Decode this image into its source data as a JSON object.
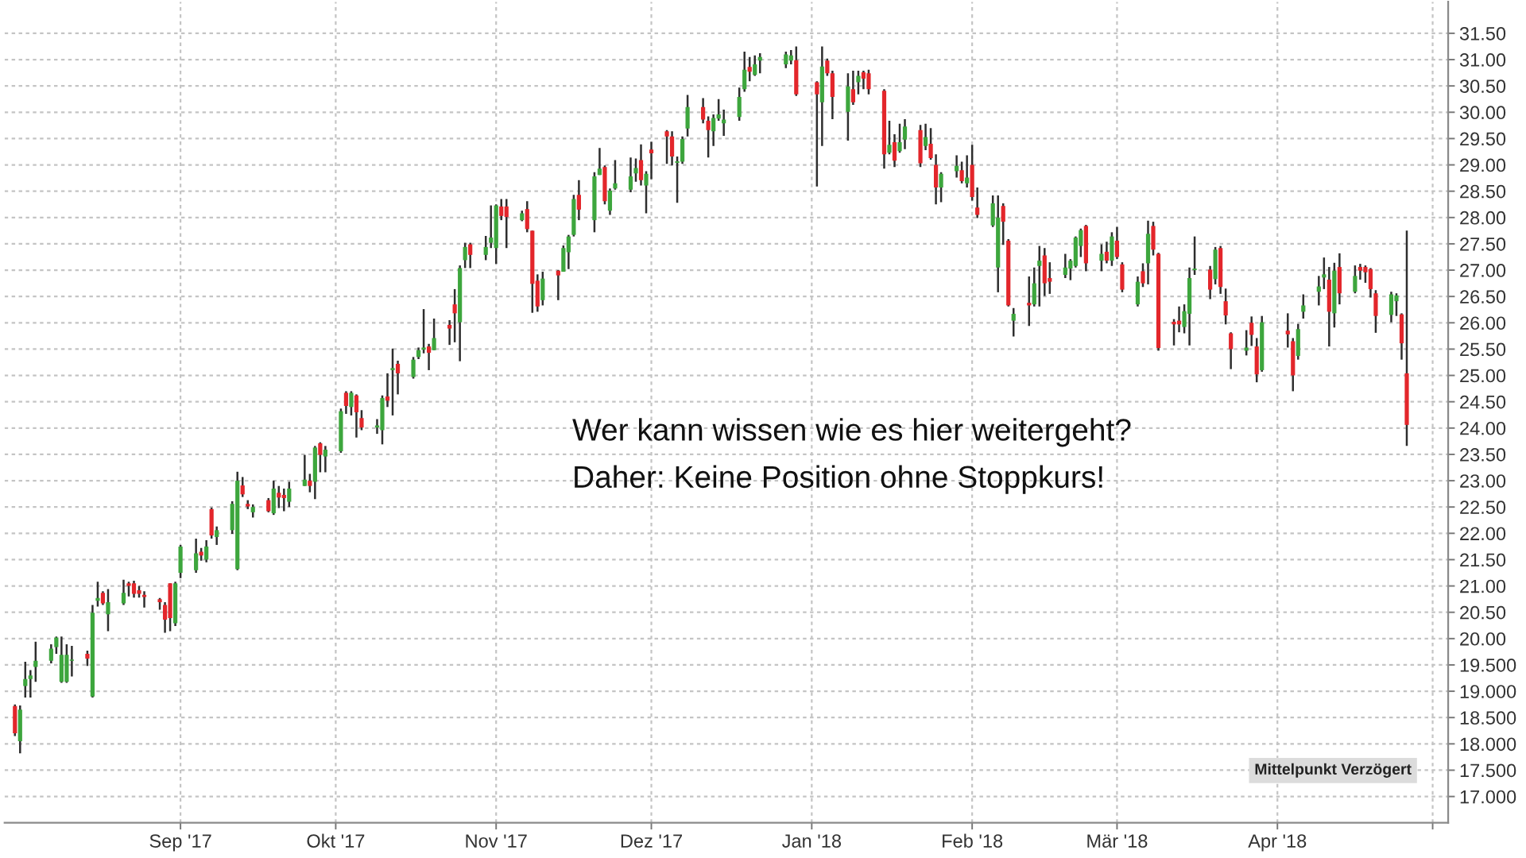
{
  "chart_data": {
    "type": "candlestick",
    "x": [
      "2017-07-31",
      "2017-08-01",
      "2017-08-02",
      "2017-08-03",
      "2017-08-04",
      "2017-08-07",
      "2017-08-08",
      "2017-08-09",
      "2017-08-10",
      "2017-08-11",
      "2017-08-14",
      "2017-08-15",
      "2017-08-16",
      "2017-08-17",
      "2017-08-18",
      "2017-08-21",
      "2017-08-22",
      "2017-08-23",
      "2017-08-24",
      "2017-08-25",
      "2017-08-28",
      "2017-08-29",
      "2017-08-30",
      "2017-08-31",
      "2017-09-01",
      "2017-09-04",
      "2017-09-05",
      "2017-09-06",
      "2017-09-07",
      "2017-09-08",
      "2017-09-11",
      "2017-09-12",
      "2017-09-13",
      "2017-09-14",
      "2017-09-15",
      "2017-09-18",
      "2017-09-19",
      "2017-09-20",
      "2017-09-21",
      "2017-09-22",
      "2017-09-25",
      "2017-09-26",
      "2017-09-27",
      "2017-09-28",
      "2017-09-29",
      "2017-10-02",
      "2017-10-03",
      "2017-10-04",
      "2017-10-05",
      "2017-10-06",
      "2017-10-09",
      "2017-10-10",
      "2017-10-11",
      "2017-10-12",
      "2017-10-13",
      "2017-10-16",
      "2017-10-17",
      "2017-10-18",
      "2017-10-19",
      "2017-10-20",
      "2017-10-23",
      "2017-10-24",
      "2017-10-25",
      "2017-10-26",
      "2017-10-27",
      "2017-10-30",
      "2017-10-31",
      "2017-11-01",
      "2017-11-02",
      "2017-11-03",
      "2017-11-06",
      "2017-11-07",
      "2017-11-08",
      "2017-11-09",
      "2017-11-10",
      "2017-11-13",
      "2017-11-14",
      "2017-11-15",
      "2017-11-16",
      "2017-11-17",
      "2017-11-20",
      "2017-11-21",
      "2017-11-22",
      "2017-11-23",
      "2017-11-24",
      "2017-11-27",
      "2017-11-28",
      "2017-11-29",
      "2017-11-30",
      "2017-12-01",
      "2017-12-04",
      "2017-12-05",
      "2017-12-06",
      "2017-12-07",
      "2017-12-08",
      "2017-12-11",
      "2017-12-12",
      "2017-12-13",
      "2017-12-14",
      "2017-12-15",
      "2017-12-18",
      "2017-12-19",
      "2017-12-20",
      "2017-12-21",
      "2017-12-22",
      "2017-12-27",
      "2017-12-28",
      "2017-12-29",
      "2018-01-02",
      "2018-01-03",
      "2018-01-04",
      "2018-01-05",
      "2018-01-08",
      "2018-01-09",
      "2018-01-10",
      "2018-01-11",
      "2018-01-12",
      "2018-01-15",
      "2018-01-16",
      "2018-01-17",
      "2018-01-18",
      "2018-01-19",
      "2018-01-22",
      "2018-01-23",
      "2018-01-24",
      "2018-01-25",
      "2018-01-26",
      "2018-01-29",
      "2018-01-30",
      "2018-01-31",
      "2018-02-01",
      "2018-02-02",
      "2018-02-05",
      "2018-02-06",
      "2018-02-07",
      "2018-02-08",
      "2018-02-09",
      "2018-02-12",
      "2018-02-13",
      "2018-02-14",
      "2018-02-15",
      "2018-02-16",
      "2018-02-19",
      "2018-02-20",
      "2018-02-21",
      "2018-02-22",
      "2018-02-23",
      "2018-02-26",
      "2018-02-27",
      "2018-02-28",
      "2018-03-01",
      "2018-03-02",
      "2018-03-05",
      "2018-03-06",
      "2018-03-07",
      "2018-03-08",
      "2018-03-09",
      "2018-03-12",
      "2018-03-13",
      "2018-03-14",
      "2018-03-15",
      "2018-03-16",
      "2018-03-19",
      "2018-03-20",
      "2018-03-21",
      "2018-03-22",
      "2018-03-23",
      "2018-03-26",
      "2018-03-27",
      "2018-03-28",
      "2018-03-29",
      "2018-04-03",
      "2018-04-04",
      "2018-04-05",
      "2018-04-06",
      "2018-04-09",
      "2018-04-10",
      "2018-04-11",
      "2018-04-12",
      "2018-04-13",
      "2018-04-16",
      "2018-04-17",
      "2018-04-18",
      "2018-04-19",
      "2018-04-20",
      "2018-04-23",
      "2018-04-24",
      "2018-04-25",
      "2018-04-26"
    ],
    "ohlc": [
      [
        18.72,
        18.75,
        18.15,
        18.2
      ],
      [
        18.05,
        18.73,
        17.82,
        18.65
      ],
      [
        19.1,
        19.56,
        18.88,
        19.23
      ],
      [
        19.23,
        19.4,
        18.88,
        19.3
      ],
      [
        19.46,
        19.94,
        19.18,
        19.58
      ],
      [
        19.58,
        19.89,
        19.53,
        19.81
      ],
      [
        19.84,
        20.04,
        19.71,
        20.02
      ],
      [
        19.18,
        20.04,
        19.16,
        19.69
      ],
      [
        19.18,
        19.89,
        19.16,
        19.69
      ],
      [
        19.58,
        19.86,
        19.28,
        19.6
      ],
      [
        19.71,
        19.77,
        19.48,
        19.62
      ],
      [
        18.9,
        20.64,
        18.88,
        20.49
      ],
      [
        20.72,
        21.08,
        20.61,
        20.77
      ],
      [
        20.87,
        20.9,
        20.64,
        20.67
      ],
      [
        20.46,
        20.94,
        20.14,
        20.69
      ],
      [
        20.67,
        21.12,
        20.64,
        20.87
      ],
      [
        21.05,
        21.08,
        20.8,
        21.0
      ],
      [
        21.05,
        21.1,
        20.78,
        20.85
      ],
      [
        20.92,
        21.0,
        20.78,
        20.85
      ],
      [
        20.83,
        20.9,
        20.59,
        20.79
      ],
      [
        20.75,
        20.77,
        20.55,
        20.69
      ],
      [
        20.64,
        20.69,
        20.11,
        20.36
      ],
      [
        21.05,
        21.05,
        20.14,
        20.39
      ],
      [
        20.29,
        21.08,
        20.24,
        21.05
      ],
      [
        21.25,
        21.78,
        21.15,
        21.75
      ],
      [
        21.3,
        21.9,
        21.25,
        21.62
      ],
      [
        21.65,
        21.72,
        21.48,
        21.58
      ],
      [
        21.5,
        21.87,
        21.45,
        21.75
      ],
      [
        22.46,
        22.49,
        21.9,
        21.96
      ],
      [
        21.93,
        22.13,
        21.78,
        22.06
      ],
      [
        22.06,
        22.61,
        21.99,
        22.56
      ],
      [
        21.32,
        23.17,
        21.3,
        23.0
      ],
      [
        22.91,
        23.07,
        22.69,
        22.74
      ],
      [
        22.56,
        22.63,
        22.46,
        22.51
      ],
      [
        22.4,
        22.55,
        22.3,
        22.5
      ],
      [
        22.63,
        22.67,
        22.4,
        22.42
      ],
      [
        22.38,
        23.0,
        22.35,
        22.85
      ],
      [
        22.77,
        22.9,
        22.48,
        22.68
      ],
      [
        22.73,
        22.85,
        22.42,
        22.67
      ],
      [
        22.6,
        22.98,
        22.5,
        22.85
      ],
      [
        22.9,
        23.49,
        22.9,
        23.02
      ],
      [
        23.0,
        23.13,
        22.78,
        22.9
      ],
      [
        22.98,
        23.66,
        22.65,
        23.63
      ],
      [
        23.71,
        23.73,
        23.16,
        23.49
      ],
      [
        23.46,
        23.66,
        23.16,
        23.59
      ],
      [
        23.56,
        24.37,
        23.53,
        24.32
      ],
      [
        24.67,
        24.7,
        24.27,
        24.42
      ],
      [
        24.4,
        24.7,
        24.24,
        24.67
      ],
      [
        24.62,
        24.64,
        23.82,
        24.3
      ],
      [
        24.19,
        24.34,
        23.96,
        24.01
      ],
      [
        24.01,
        24.17,
        23.89,
        24.05
      ],
      [
        23.96,
        24.62,
        23.69,
        24.57
      ],
      [
        24.6,
        25.04,
        24.4,
        24.52
      ],
      [
        25.1,
        25.51,
        24.24,
        25.14
      ],
      [
        25.22,
        25.28,
        24.64,
        25.04
      ],
      [
        24.97,
        25.35,
        24.94,
        25.3
      ],
      [
        25.35,
        25.53,
        25.31,
        25.48
      ],
      [
        25.49,
        26.26,
        25.42,
        25.53
      ],
      [
        25.55,
        25.6,
        25.1,
        25.43
      ],
      [
        25.48,
        26.08,
        25.48,
        25.71
      ],
      [
        25.96,
        26.05,
        25.58,
        25.89
      ],
      [
        26.35,
        26.64,
        25.63,
        26.18
      ],
      [
        26.01,
        27.09,
        25.27,
        27.04
      ],
      [
        27.19,
        27.52,
        27.04,
        27.44
      ],
      [
        27.49,
        27.52,
        27.04,
        27.29
      ],
      [
        27.29,
        27.65,
        27.19,
        27.44
      ],
      [
        27.52,
        28.23,
        27.42,
        27.62
      ],
      [
        27.42,
        28.25,
        27.12,
        28.23
      ],
      [
        28.21,
        28.35,
        27.95,
        28.03
      ],
      [
        28.21,
        28.35,
        27.42,
        28.01
      ],
      [
        27.95,
        28.13,
        27.93,
        28.08
      ],
      [
        28.16,
        28.31,
        27.72,
        27.78
      ],
      [
        27.75,
        27.75,
        26.19,
        26.74
      ],
      [
        26.8,
        26.92,
        26.21,
        26.31
      ],
      [
        26.43,
        26.97,
        26.33,
        26.84
      ],
      [
        26.99,
        27.0,
        26.43,
        26.9
      ],
      [
        26.97,
        27.47,
        26.97,
        27.42
      ],
      [
        27.34,
        27.67,
        27.02,
        27.64
      ],
      [
        27.67,
        28.43,
        27.64,
        28.35
      ],
      [
        28.43,
        28.71,
        27.95,
        28.15
      ],
      [
        27.95,
        28.86,
        27.72,
        28.78
      ],
      [
        28.81,
        29.32,
        28.81,
        28.93
      ],
      [
        28.96,
        28.99,
        28.25,
        28.31
      ],
      [
        28.13,
        28.55,
        28.05,
        28.51
      ],
      [
        28.55,
        29.09,
        28.53,
        28.65
      ],
      [
        28.53,
        29.14,
        28.48,
        28.78
      ],
      [
        28.84,
        29.12,
        28.68,
        28.94
      ],
      [
        29.09,
        29.39,
        28.61,
        28.71
      ],
      [
        28.61,
        28.88,
        28.08,
        28.83
      ],
      [
        29.29,
        29.44,
        28.73,
        29.22
      ],
      [
        29.64,
        29.66,
        29.02,
        29.54
      ],
      [
        29.54,
        29.64,
        28.99,
        29.16
      ],
      [
        29.04,
        29.16,
        28.28,
        29.07
      ],
      [
        29.06,
        29.54,
        29.02,
        29.49
      ],
      [
        29.69,
        30.33,
        29.54,
        30.1
      ],
      [
        30.1,
        30.27,
        29.79,
        29.86
      ],
      [
        29.84,
        29.92,
        29.14,
        29.66
      ],
      [
        29.64,
        29.96,
        29.36,
        29.89
      ],
      [
        29.88,
        30.25,
        29.84,
        29.96
      ],
      [
        29.79,
        30.05,
        29.55,
        29.86
      ],
      [
        29.91,
        30.47,
        29.84,
        30.29
      ],
      [
        30.44,
        31.15,
        30.39,
        30.81
      ],
      [
        30.86,
        31.05,
        30.59,
        30.77
      ],
      [
        30.71,
        31.08,
        30.69,
        30.91
      ],
      [
        30.98,
        31.12,
        30.74,
        31.05
      ],
      [
        30.91,
        31.15,
        30.84,
        31.1
      ],
      [
        30.98,
        31.18,
        30.91,
        31.08
      ],
      [
        30.99,
        31.25,
        30.31,
        30.34
      ],
      [
        30.57,
        30.59,
        28.59,
        30.34
      ],
      [
        30.19,
        31.25,
        29.36,
        30.87
      ],
      [
        30.98,
        31.02,
        30.69,
        30.74
      ],
      [
        30.74,
        30.79,
        29.87,
        30.29
      ],
      [
        30.01,
        30.74,
        29.46,
        30.49
      ],
      [
        30.44,
        30.79,
        30.14,
        30.19
      ],
      [
        30.57,
        30.79,
        30.34,
        30.69
      ],
      [
        30.76,
        30.79,
        30.44,
        30.64
      ],
      [
        30.74,
        30.81,
        30.34,
        30.44
      ],
      [
        30.41,
        30.44,
        28.93,
        29.2
      ],
      [
        29.23,
        29.84,
        29.2,
        29.38
      ],
      [
        29.43,
        29.58,
        28.96,
        29.08
      ],
      [
        29.26,
        29.78,
        29.23,
        29.43
      ],
      [
        29.48,
        29.87,
        29.3,
        29.73
      ],
      [
        29.66,
        29.76,
        28.96,
        29.03
      ],
      [
        29.36,
        29.78,
        29.28,
        29.53
      ],
      [
        29.4,
        29.7,
        29.1,
        29.13
      ],
      [
        29.0,
        29.2,
        28.25,
        28.57
      ],
      [
        28.57,
        28.86,
        28.29,
        28.83
      ],
      [
        28.88,
        29.18,
        28.76,
        28.98
      ],
      [
        28.9,
        29.06,
        28.65,
        28.69
      ],
      [
        28.65,
        29.18,
        28.57,
        28.76
      ],
      [
        29.0,
        29.38,
        28.32,
        28.39
      ],
      [
        28.19,
        28.57,
        27.99,
        28.05
      ],
      [
        27.85,
        28.42,
        27.82,
        28.27
      ],
      [
        27.05,
        28.42,
        26.58,
        28.0
      ],
      [
        28.22,
        28.27,
        27.48,
        27.92
      ],
      [
        27.56,
        27.59,
        26.31,
        26.33
      ],
      [
        26.04,
        26.28,
        25.74,
        26.17
      ],
      [
        26.38,
        26.88,
        25.94,
        26.33
      ],
      [
        26.35,
        27.05,
        26.31,
        26.75
      ],
      [
        27.08,
        27.46,
        26.31,
        27.18
      ],
      [
        27.28,
        27.42,
        26.51,
        26.75
      ],
      [
        26.85,
        27.15,
        26.55,
        26.78
      ],
      [
        26.91,
        27.31,
        26.85,
        27.05
      ],
      [
        27.03,
        27.21,
        26.81,
        27.18
      ],
      [
        27.08,
        27.64,
        27.05,
        27.62
      ],
      [
        27.46,
        27.79,
        27.25,
        27.76
      ],
      [
        27.84,
        27.86,
        26.98,
        27.13
      ],
      [
        27.18,
        27.49,
        26.98,
        27.31
      ],
      [
        27.35,
        27.54,
        27.13,
        27.18
      ],
      [
        27.18,
        27.72,
        27.08,
        27.64
      ],
      [
        27.56,
        27.82,
        27.21,
        27.25
      ],
      [
        27.11,
        27.15,
        26.58,
        26.63
      ],
      [
        26.35,
        26.88,
        26.31,
        26.78
      ],
      [
        26.98,
        27.13,
        26.68,
        26.75
      ],
      [
        27.13,
        27.94,
        26.73,
        27.69
      ],
      [
        27.84,
        27.92,
        27.28,
        27.39
      ],
      [
        27.31,
        27.33,
        25.47,
        25.52
      ],
      [
        26.02,
        26.07,
        25.57,
        25.97
      ],
      [
        26.04,
        26.31,
        25.82,
        25.97
      ],
      [
        25.92,
        26.35,
        25.8,
        26.22
      ],
      [
        26.17,
        27.05,
        25.57,
        26.85
      ],
      [
        27.0,
        27.64,
        26.91,
        27.03
      ],
      [
        27.01,
        27.08,
        26.45,
        26.63
      ],
      [
        26.83,
        27.44,
        26.73,
        27.39
      ],
      [
        27.42,
        27.46,
        26.55,
        26.68
      ],
      [
        26.41,
        26.65,
        25.97,
        26.14
      ],
      [
        25.8,
        25.82,
        25.12,
        25.5
      ],
      [
        25.47,
        25.86,
        25.38,
        25.53
      ],
      [
        26.0,
        26.12,
        25.56,
        25.77
      ],
      [
        25.55,
        25.71,
        24.87,
        25.02
      ],
      [
        25.1,
        26.13,
        25.07,
        26.01
      ],
      [
        25.85,
        26.18,
        25.53,
        25.78
      ],
      [
        25.65,
        25.71,
        24.7,
        25.0
      ],
      [
        25.37,
        25.98,
        25.3,
        25.88
      ],
      [
        26.21,
        26.54,
        26.08,
        26.33
      ],
      [
        26.59,
        26.89,
        26.33,
        26.69
      ],
      [
        26.86,
        27.24,
        26.64,
        26.92
      ],
      [
        26.82,
        27.06,
        25.55,
        26.21
      ],
      [
        26.18,
        27.14,
        25.91,
        26.99
      ],
      [
        27.06,
        27.32,
        26.35,
        26.56
      ],
      [
        26.59,
        27.09,
        26.56,
        26.89
      ],
      [
        27.06,
        27.12,
        26.82,
        26.99
      ],
      [
        27.06,
        27.09,
        26.76,
        26.96
      ],
      [
        27.02,
        27.04,
        26.48,
        26.64
      ],
      [
        26.56,
        26.62,
        25.81,
        26.13
      ],
      [
        26.15,
        26.59,
        26.01,
        26.54
      ],
      [
        26.41,
        26.56,
        26.13,
        26.52
      ],
      [
        26.16,
        26.18,
        25.3,
        25.61
      ],
      [
        25.04,
        27.75,
        23.66,
        24.06
      ]
    ],
    "colors": [
      "#e3262b",
      "#3da63d",
      "#3da63d",
      "#3da63d",
      "#3da63d",
      "#3da63d",
      "#3da63d",
      "#3da63d",
      "#3da63d",
      "#3da63d",
      "#e3262b",
      "#3da63d",
      "#3da63d",
      "#e3262b",
      "#3da63d",
      "#3da63d",
      "#e3262b",
      "#e3262b",
      "#e3262b",
      "#e3262b",
      "#e3262b",
      "#e3262b",
      "#e3262b",
      "#3da63d",
      "#3da63d",
      "#3da63d",
      "#e3262b",
      "#3da63d",
      "#e3262b",
      "#3da63d",
      "#3da63d",
      "#3da63d",
      "#e3262b",
      "#e3262b",
      "#3da63d",
      "#e3262b",
      "#3da63d",
      "#e3262b",
      "#e3262b",
      "#3da63d",
      "#3da63d",
      "#e3262b",
      "#3da63d",
      "#e3262b",
      "#3da63d",
      "#3da63d",
      "#e3262b",
      "#3da63d",
      "#e3262b",
      "#e3262b",
      "#3da63d",
      "#3da63d",
      "#e3262b",
      "#3da63d",
      "#e3262b",
      "#3da63d",
      "#3da63d",
      "#3da63d",
      "#e3262b",
      "#3da63d",
      "#e3262b",
      "#e3262b",
      "#3da63d",
      "#3da63d",
      "#e3262b",
      "#3da63d",
      "#3da63d",
      "#3da63d",
      "#e3262b",
      "#e3262b",
      "#3da63d",
      "#e3262b",
      "#e3262b",
      "#e3262b",
      "#3da63d",
      "#e3262b",
      "#3da63d",
      "#3da63d",
      "#3da63d",
      "#e3262b",
      "#3da63d",
      "#3da63d",
      "#e3262b",
      "#3da63d",
      "#3da63d",
      "#3da63d",
      "#3da63d",
      "#e3262b",
      "#3da63d",
      "#e3262b",
      "#e3262b",
      "#e3262b",
      "#3da63d",
      "#3da63d",
      "#3da63d",
      "#e3262b",
      "#e3262b",
      "#3da63d",
      "#3da63d",
      "#3da63d",
      "#3da63d",
      "#3da63d",
      "#e3262b",
      "#3da63d",
      "#3da63d",
      "#3da63d",
      "#3da63d",
      "#e3262b",
      "#e3262b",
      "#3da63d",
      "#e3262b",
      "#e3262b",
      "#3da63d",
      "#e3262b",
      "#3da63d",
      "#e3262b",
      "#e3262b",
      "#e3262b",
      "#3da63d",
      "#e3262b",
      "#3da63d",
      "#3da63d",
      "#e3262b",
      "#3da63d",
      "#e3262b",
      "#e3262b",
      "#3da63d",
      "#3da63d",
      "#e3262b",
      "#3da63d",
      "#e3262b",
      "#e3262b",
      "#3da63d",
      "#3da63d",
      "#e3262b",
      "#e3262b",
      "#3da63d",
      "#e3262b",
      "#3da63d",
      "#3da63d",
      "#e3262b",
      "#e3262b",
      "#3da63d",
      "#3da63d",
      "#3da63d",
      "#3da63d",
      "#e3262b",
      "#3da63d",
      "#e3262b",
      "#3da63d",
      "#e3262b",
      "#e3262b",
      "#3da63d",
      "#e3262b",
      "#3da63d",
      "#e3262b",
      "#e3262b",
      "#e3262b",
      "#e3262b",
      "#3da63d",
      "#3da63d",
      "#3da63d",
      "#e3262b",
      "#3da63d",
      "#e3262b",
      "#e3262b",
      "#e3262b",
      "#3da63d",
      "#e3262b",
      "#e3262b",
      "#3da63d",
      "#e3262b",
      "#e3262b",
      "#3da63d",
      "#3da63d",
      "#3da63d",
      "#3da63d",
      "#e3262b",
      "#3da63d",
      "#e3262b",
      "#3da63d",
      "#e3262b",
      "#e3262b",
      "#e3262b",
      "#e3262b",
      "#3da63d",
      "#3da63d",
      "#e3262b",
      "#e3262b"
    ],
    "xlim": [
      "2017-07-29",
      "2018-05-04"
    ],
    "xticks": [
      {
        "value": "2017-09-01",
        "label": "Sep '17"
      },
      {
        "value": "2017-10-01",
        "label": "Okt '17"
      },
      {
        "value": "2017-11-01",
        "label": "Nov '17"
      },
      {
        "value": "2017-12-01",
        "label": "Dez '17"
      },
      {
        "value": "2018-01-01",
        "label": "Jan '18"
      },
      {
        "value": "2018-02-01",
        "label": "Feb '18"
      },
      {
        "value": "2018-03-01",
        "label": "Mär '18"
      },
      {
        "value": "2018-04-01",
        "label": "Apr '18"
      },
      {
        "value": "2018-05-01",
        "label": null
      }
    ],
    "ylim": [
      16.5,
      32.1
    ],
    "yticks": [
      {
        "value": 17.0,
        "label": "17.000"
      },
      {
        "value": 17.5,
        "label": "17.500"
      },
      {
        "value": 18.0,
        "label": "18.000"
      },
      {
        "value": 18.5,
        "label": "18.500"
      },
      {
        "value": 19.0,
        "label": "19.000"
      },
      {
        "value": 19.5,
        "label": "19.500"
      },
      {
        "value": 20.0,
        "label": "20.00"
      },
      {
        "value": 20.5,
        "label": "20.50"
      },
      {
        "value": 21.0,
        "label": "21.00"
      },
      {
        "value": 21.5,
        "label": "21.50"
      },
      {
        "value": 22.0,
        "label": "22.00"
      },
      {
        "value": 22.5,
        "label": "22.50"
      },
      {
        "value": 23.0,
        "label": "23.00"
      },
      {
        "value": 23.5,
        "label": "23.50"
      },
      {
        "value": 24.0,
        "label": "24.00"
      },
      {
        "value": 24.5,
        "label": "24.50"
      },
      {
        "value": 25.0,
        "label": "25.00"
      },
      {
        "value": 25.5,
        "label": "25.50"
      },
      {
        "value": 26.0,
        "label": "26.00"
      },
      {
        "value": 26.5,
        "label": "26.50"
      },
      {
        "value": 27.0,
        "label": "27.00"
      },
      {
        "value": 27.5,
        "label": "27.50"
      },
      {
        "value": 28.0,
        "label": "28.00"
      },
      {
        "value": 28.5,
        "label": "28.50"
      },
      {
        "value": 29.0,
        "label": "29.00"
      },
      {
        "value": 29.5,
        "label": "29.50"
      },
      {
        "value": 30.0,
        "label": "30.00"
      },
      {
        "value": 30.5,
        "label": "30.50"
      },
      {
        "value": 31.0,
        "label": "31.00"
      },
      {
        "value": 31.5,
        "label": "31.50"
      }
    ],
    "grid": true,
    "annotations": [
      "Wer kann wissen wie es hier weitergeht?",
      "Daher: Keine Position ohne Stoppkurs!",
      "Mittelpunkt Verzögert"
    ]
  }
}
